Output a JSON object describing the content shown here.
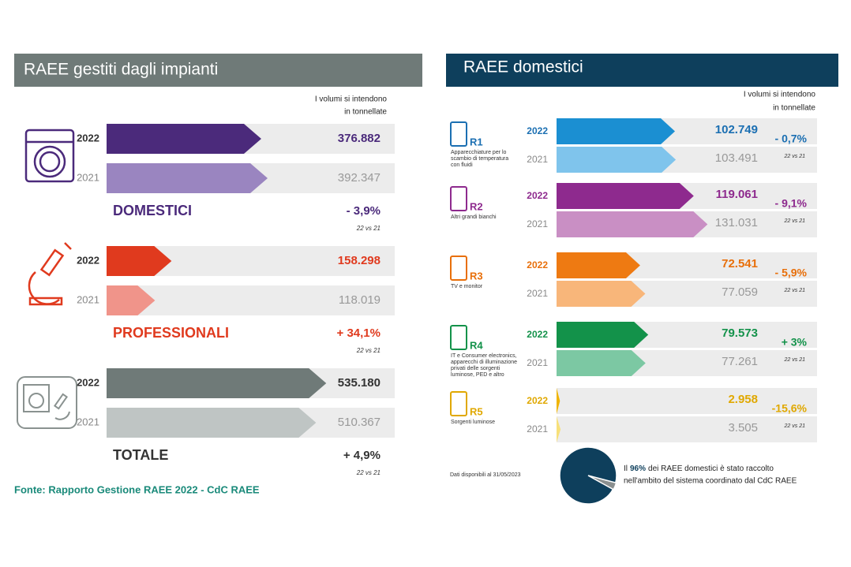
{
  "left": {
    "title": "RAEE gestiti dagli impianti",
    "note": [
      "I volumi si intendono",
      "in tonnellate"
    ],
    "groups": [
      {
        "name": "DOMESTICI",
        "years": [
          "2022",
          "2021"
        ],
        "values": [
          376882,
          392347
        ],
        "value_labels": [
          "376.882",
          "392.347"
        ],
        "colors": [
          "#4b2a7b",
          "#9a85c0"
        ],
        "text_color": "#4b2a7b",
        "change": "- 3,9%",
        "compare": "22 vs 21"
      },
      {
        "name": "PROFESSIONALI",
        "years": [
          "2022",
          "2021"
        ],
        "values": [
          158298,
          118019
        ],
        "value_labels": [
          "158.298",
          "118.019"
        ],
        "colors": [
          "#e03a1e",
          "#f0948a"
        ],
        "text_color": "#e03a1e",
        "change": "+ 34,1%",
        "compare": "22 vs 21"
      },
      {
        "name": "TOTALE",
        "years": [
          "2022",
          "2021"
        ],
        "values": [
          535180,
          510367
        ],
        "value_labels": [
          "535.180",
          "510.367"
        ],
        "colors": [
          "#6f7a78",
          "#bfc5c4"
        ],
        "text_color": "#333333",
        "change": "+ 4,9%",
        "compare": "22 vs 21"
      }
    ],
    "source": "Fonte: Rapporto Gestione RAEE 2022 - CdC RAEE"
  },
  "right": {
    "title": "RAEE domestici",
    "note": [
      "I volumi si intendono",
      "in tonnellate"
    ],
    "groups": [
      {
        "code": "R1",
        "description": [
          "Apparecchiature per lo",
          "scambio di temperatura",
          "con fluidi"
        ],
        "years": [
          "2022",
          "2021"
        ],
        "values": [
          102749,
          103491
        ],
        "value_labels": [
          "102.749",
          "103.491"
        ],
        "colors": [
          "#1b8fd2",
          "#7fc4ec"
        ],
        "text_color": "#1b6fb2",
        "change": "- 0,7%",
        "compare": "22 vs 21"
      },
      {
        "code": "R2",
        "description": [
          "Altri grandi bianchi"
        ],
        "years": [
          "2022",
          "2021"
        ],
        "values": [
          119061,
          131031
        ],
        "value_labels": [
          "119.061",
          "131.031"
        ],
        "colors": [
          "#8e2a8e",
          "#c98fc4"
        ],
        "text_color": "#8e2a8e",
        "change": "- 9,1%",
        "compare": "22 vs 21"
      },
      {
        "code": "R3",
        "description": [
          "TV e monitor"
        ],
        "years": [
          "2022",
          "2021"
        ],
        "values": [
          72541,
          77059
        ],
        "value_labels": [
          "72.541",
          "77.059"
        ],
        "colors": [
          "#ee7a12",
          "#f8b67a"
        ],
        "text_color": "#e86f0a",
        "change": "- 5,9%",
        "compare": "22 vs 21"
      },
      {
        "code": "R4",
        "description": [
          "IT e Consumer electronics,",
          "apparecchi di illuminazione",
          "privati delle sorgenti",
          "luminose, PED e altro"
        ],
        "years": [
          "2022",
          "2021"
        ],
        "values": [
          79573,
          77261
        ],
        "value_labels": [
          "79.573",
          "77.261"
        ],
        "colors": [
          "#13924a",
          "#7cc8a3"
        ],
        "text_color": "#13924a",
        "change": "+ 3%",
        "compare": "22 vs 21"
      },
      {
        "code": "R5",
        "description": [
          "Sorgenti luminose"
        ],
        "years": [
          "2022",
          "2021"
        ],
        "values": [
          2958,
          3505
        ],
        "value_labels": [
          "2.958",
          "3.505"
        ],
        "colors": [
          "#f0b400",
          "#f7e07a"
        ],
        "text_color": "#e0a800",
        "change": "-15,6%",
        "compare": "22 vs 21"
      }
    ],
    "footnote": "Dati disponibili al 31/05/2023",
    "pie": {
      "value": 96,
      "label": "96%",
      "color": "#0e3f5c",
      "prefix": "Il",
      "line1": "dei RAEE domestici è stato raccolto",
      "line2": "nell'ambito del sistema coordinato dal CdC RAEE"
    }
  }
}
